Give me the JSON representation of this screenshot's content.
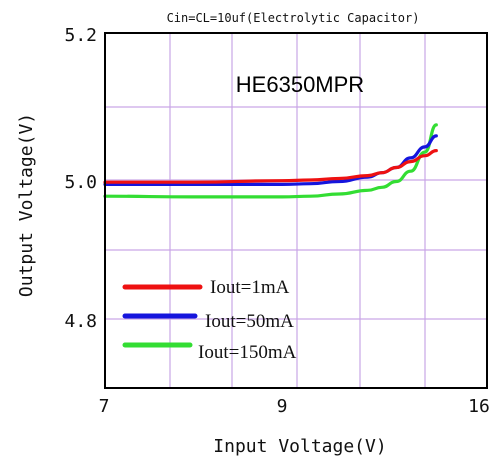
{
  "chart_data": {
    "type": "line",
    "title": "HE6350MPR",
    "subtitle": "Cin=CL=10uf(Electrolytic Capacitor)",
    "xlabel": "Input Voltage(V)",
    "ylabel": "Output Voltage(V)",
    "xlim": [
      7,
      16
    ],
    "ylim": [
      4.7,
      5.2
    ],
    "x_tick_labels": [
      "7",
      "9",
      "16"
    ],
    "y_ticks": [
      {
        "value": 5.2,
        "label": "5.2"
      },
      {
        "value": 5.0,
        "label": "5.0"
      },
      {
        "value": 4.8,
        "label": "4.8"
      }
    ],
    "grid": true,
    "legend_position": "bottom-left",
    "series": [
      {
        "name": "Iout=1mA",
        "color": "#ee1111",
        "points": [
          [
            7.0,
            4.997
          ],
          [
            8.0,
            4.997
          ],
          [
            9.0,
            4.999
          ],
          [
            10.0,
            5.0
          ],
          [
            11.0,
            5.002
          ],
          [
            12.0,
            5.006
          ],
          [
            12.5,
            5.01
          ],
          [
            13.0,
            5.017
          ],
          [
            13.5,
            5.025
          ],
          [
            14.0,
            5.033
          ],
          [
            14.4,
            5.04
          ]
        ]
      },
      {
        "name": "Iout=50mA",
        "color": "#1515dd",
        "points": [
          [
            7.0,
            4.994
          ],
          [
            8.0,
            4.994
          ],
          [
            9.0,
            4.994
          ],
          [
            10.0,
            4.995
          ],
          [
            11.0,
            4.998
          ],
          [
            12.0,
            5.004
          ],
          [
            12.5,
            5.01
          ],
          [
            13.0,
            5.017
          ],
          [
            13.5,
            5.03
          ],
          [
            14.0,
            5.045
          ],
          [
            14.4,
            5.06
          ]
        ]
      },
      {
        "name": "Iout=150mA",
        "color": "#33dd33",
        "points": [
          [
            7.0,
            4.978
          ],
          [
            8.0,
            4.977
          ],
          [
            9.0,
            4.977
          ],
          [
            10.0,
            4.978
          ],
          [
            11.0,
            4.981
          ],
          [
            12.0,
            4.986
          ],
          [
            12.5,
            4.99
          ],
          [
            13.0,
            4.998
          ],
          [
            13.5,
            5.012
          ],
          [
            14.0,
            5.038
          ],
          [
            14.4,
            5.075
          ]
        ]
      }
    ]
  }
}
